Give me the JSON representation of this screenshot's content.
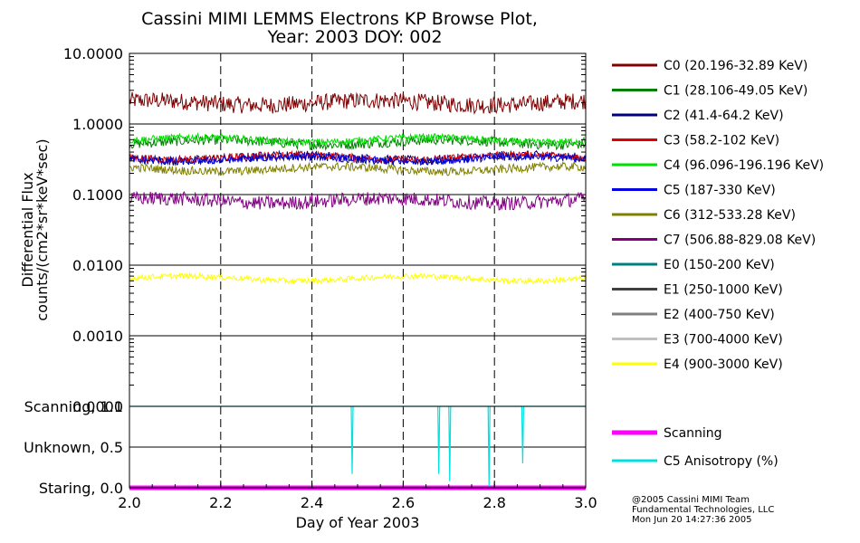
{
  "chart_data": {
    "type": "line",
    "title": [
      "Cassini MIMI LEMMS Electrons KP Browse Plot,",
      "Year: 2003 DOY: 002"
    ],
    "xlabel": "Day of Year 2003",
    "xlim": [
      2.0,
      3.0
    ],
    "x_ticks": [
      "2.0",
      "2.2",
      "2.4",
      "2.6",
      "2.8",
      "3.0"
    ],
    "x_tick_values": [
      2.0,
      2.2,
      2.4,
      2.6,
      2.8,
      3.0
    ],
    "x_grid_values": [
      2.2,
      2.4,
      2.6,
      2.8
    ],
    "flux_panel": {
      "ylabel": [
        "Differential Flux",
        "counts/(cm2*sr*keV*sec)"
      ],
      "scale": "log",
      "ylim": [
        0.0001,
        10.0
      ],
      "y_ticks": [
        "10.0000",
        "1.0000",
        "0.1000",
        "0.0100",
        "0.0010",
        "0.0001"
      ],
      "y_tick_values": [
        10,
        1,
        0.1,
        0.01,
        0.001,
        0.0001
      ],
      "series": [
        {
          "name": "C0 (20.196-32.89 KeV)",
          "color": "#7f0000",
          "level": 2.0,
          "noise": 0.12,
          "visible": true
        },
        {
          "name": "C1 (28.106-49.05 KeV)",
          "color": "#008000",
          "level": 0.55,
          "noise": 0.07,
          "visible": true
        },
        {
          "name": "C2 (41.4-64.2 KeV)",
          "color": "#00007f",
          "level": 0.33,
          "noise": 0.07,
          "visible": true
        },
        {
          "name": "C3 (58.2-102 KeV)",
          "color": "#e00000",
          "level": 0.34,
          "noise": 0.05,
          "visible": true
        },
        {
          "name": "C4 (96.096-196.196 KeV)",
          "color": "#00e000",
          "level": 0.6,
          "noise": 0.05,
          "visible": true
        },
        {
          "name": "C5 (187-330 KeV)",
          "color": "#0000e0",
          "level": 0.32,
          "noise": 0.05,
          "visible": true
        },
        {
          "name": "C6 (312-533.28 KeV)",
          "color": "#808000",
          "level": 0.23,
          "noise": 0.06,
          "visible": true
        },
        {
          "name": "C7 (506.88-829.08 KeV)",
          "color": "#800080",
          "level": 0.082,
          "noise": 0.1,
          "visible": true
        },
        {
          "name": "E0 (150-200 KeV)",
          "color": "#007f7f",
          "level": null,
          "noise": 0,
          "visible": false
        },
        {
          "name": "E1 (250-1000 KeV)",
          "color": "#404040",
          "level": null,
          "noise": 0,
          "visible": false
        },
        {
          "name": "E2 (400-750 KeV)",
          "color": "#808080",
          "level": null,
          "noise": 0,
          "visible": false
        },
        {
          "name": "E3 (700-4000 KeV)",
          "color": "#c0c0c0",
          "level": null,
          "noise": 0,
          "visible": false
        },
        {
          "name": "E4 (900-3000 KeV)",
          "color": "#ffff00",
          "level": 0.0065,
          "noise": 0.04,
          "visible": true
        }
      ]
    },
    "mode_panel": {
      "ylim": [
        0.0,
        1.0
      ],
      "y_ticks": [
        "Scanning, 1.0",
        "Unknown, 0.5",
        "Staring, 0.0"
      ],
      "y_tick_values": [
        1.0,
        0.5,
        0.0
      ],
      "series": [
        {
          "name": "Scanning",
          "color": "#ff00ff",
          "value": 0.0
        },
        {
          "name": "C5 Anisotropy (%)",
          "color": "#00e0e0",
          "baseline": 1.0,
          "dips": [
            [
              2.488,
              0.17
            ],
            [
              2.678,
              0.17
            ],
            [
              2.702,
              0.08
            ],
            [
              2.788,
              0.02
            ],
            [
              2.862,
              0.3
            ]
          ]
        }
      ]
    }
  },
  "footer": {
    "line1": "@2005 Cassini MIMI Team",
    "line2": "Fundamental Technologies, LLC",
    "line3": "Mon Jun 20 14:27:36 2005"
  }
}
